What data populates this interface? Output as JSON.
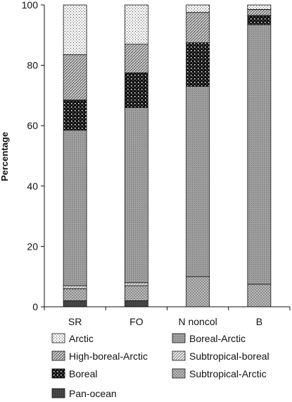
{
  "chart_data": {
    "type": "bar",
    "stacked": true,
    "ylabel": "Percentage",
    "ylim": [
      0,
      100
    ],
    "yticks": [
      0,
      20,
      40,
      60,
      80,
      100
    ],
    "grid": false,
    "legend_position": "bottom",
    "categories": [
      "SR",
      "FO",
      "N noncol",
      "B"
    ],
    "series": [
      {
        "name": "Pan-ocean",
        "pattern": "pat-panocean",
        "values": [
          2.0,
          2.0,
          0.0,
          0.0
        ]
      },
      {
        "name": "Subtropical-Arctic",
        "pattern": "pat-subarctic",
        "values": [
          4.0,
          5.0,
          10.0,
          7.5
        ]
      },
      {
        "name": "Subtropical-boreal",
        "pattern": "pat-subboreal",
        "values": [
          1.0,
          1.0,
          0.0,
          0.0
        ]
      },
      {
        "name": "Boreal-Arctic",
        "pattern": "pat-borealarctic",
        "values": [
          51.5,
          58.0,
          63.0,
          86.0
        ]
      },
      {
        "name": "Boreal",
        "pattern": "pat-boreal",
        "values": [
          10.0,
          11.5,
          14.5,
          3.0
        ]
      },
      {
        "name": "High-boreal-Arctic",
        "pattern": "pat-highboreal",
        "values": [
          15.0,
          9.5,
          10.0,
          2.0
        ]
      },
      {
        "name": "Arctic",
        "pattern": "pat-arctic",
        "values": [
          16.5,
          13.0,
          2.5,
          1.5
        ]
      }
    ],
    "legend_order": [
      "Arctic",
      "Boreal-Arctic",
      "High-boreal-Arctic",
      "Subtropical-boreal",
      "Boreal",
      "Subtropical-Arctic",
      "Pan-ocean"
    ]
  }
}
